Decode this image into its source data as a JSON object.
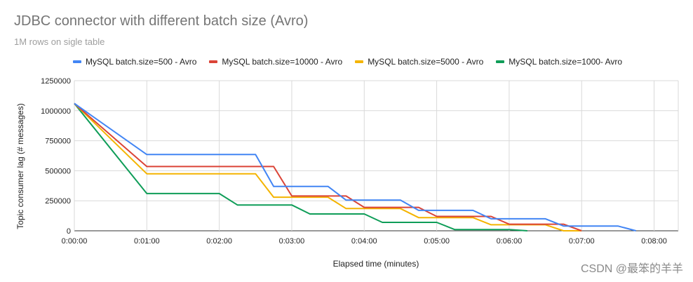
{
  "chart_data": {
    "type": "line",
    "title": "JDBC connector with different batch size (Avro)",
    "subtitle": "1M rows on sigle table",
    "xlabel": "Elapsed time (minutes)",
    "ylabel": "Topic consumer lag (# messages)",
    "x_tick_labels": [
      "0:00:00",
      "0:01:00",
      "0:02:00",
      "0:03:00",
      "0:04:00",
      "0:05:00",
      "0:06:00",
      "0:07:00",
      "0:08:00"
    ],
    "y_tick_labels": [
      "0",
      "250000",
      "500000",
      "750000",
      "1000000",
      "1250000"
    ],
    "xlim_seconds": [
      0,
      500
    ],
    "ylim": [
      0,
      1250000
    ],
    "grid": true,
    "legend_position": "top",
    "series": [
      {
        "name": "MySQL batch.size=500 - Avro",
        "color": "#4285f4",
        "x_seconds": [
          0,
          60,
          150,
          165,
          210,
          225,
          270,
          285,
          330,
          345,
          390,
          405,
          450,
          465
        ],
        "values": [
          1060000,
          635000,
          635000,
          370000,
          370000,
          255000,
          255000,
          170000,
          170000,
          100000,
          100000,
          40000,
          40000,
          0
        ]
      },
      {
        "name": "MySQL batch.size=10000 - Avro",
        "color": "#db4437",
        "x_seconds": [
          0,
          60,
          165,
          180,
          225,
          240,
          285,
          300,
          345,
          360,
          405,
          420
        ],
        "values": [
          1060000,
          535000,
          535000,
          290000,
          290000,
          195000,
          195000,
          120000,
          120000,
          55000,
          55000,
          0
        ]
      },
      {
        "name": "MySQL batch.size=5000 - Avro",
        "color": "#f4b400",
        "x_seconds": [
          0,
          60,
          150,
          165,
          210,
          225,
          270,
          285,
          330,
          345,
          390,
          405,
          420
        ],
        "values": [
          1060000,
          475000,
          475000,
          280000,
          280000,
          185000,
          185000,
          110000,
          110000,
          50000,
          50000,
          0,
          0
        ]
      },
      {
        "name": "MySQL batch.size=1000- Avro",
        "color": "#0f9d58",
        "x_seconds": [
          0,
          60,
          120,
          135,
          180,
          195,
          240,
          255,
          300,
          315,
          360,
          375
        ],
        "values": [
          1060000,
          310000,
          310000,
          215000,
          215000,
          140000,
          140000,
          70000,
          70000,
          10000,
          10000,
          0
        ]
      }
    ]
  },
  "watermark": "CSDN @最笨的羊羊"
}
